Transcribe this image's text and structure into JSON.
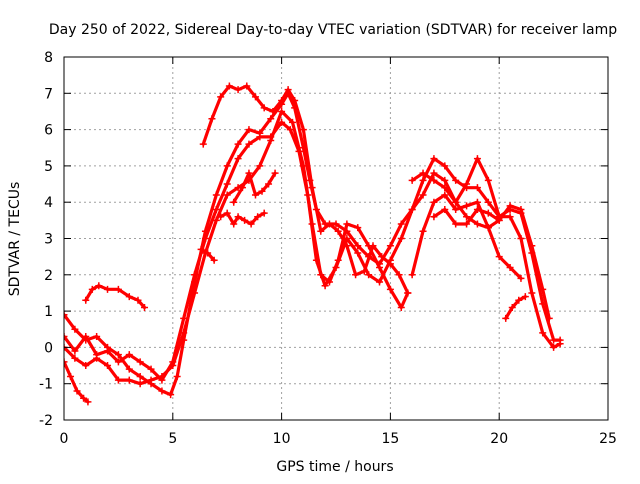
{
  "chart_data": {
    "type": "line",
    "title": "Day 250 of 2022, Sidereal Day-to-day VTEC variation (SDTVAR) for receiver lamp",
    "xlabel": "GPS time / hours",
    "ylabel": "SDTVAR / TECUs",
    "xlim": [
      0,
      25
    ],
    "ylim": [
      -2,
      8
    ],
    "xticks": [
      0,
      5,
      10,
      15,
      20,
      25
    ],
    "yticks": [
      -2,
      -1,
      0,
      1,
      2,
      3,
      4,
      5,
      6,
      7,
      8
    ],
    "grid": true,
    "marker": "+",
    "color": "#ff0000",
    "series": [
      {
        "name": "trace-1",
        "points": [
          [
            0.0,
            0.9
          ],
          [
            0.5,
            0.5
          ],
          [
            1.0,
            0.2
          ],
          [
            1.5,
            0.3
          ],
          [
            2.0,
            0.0
          ],
          [
            2.5,
            -0.2
          ],
          [
            3.0,
            -0.6
          ],
          [
            3.5,
            -0.8
          ],
          [
            4.0,
            -1.0
          ],
          [
            4.5,
            -1.2
          ],
          [
            4.9,
            -1.3
          ],
          [
            5.2,
            -0.8
          ],
          [
            5.5,
            0.2
          ],
          [
            6.0,
            1.8
          ],
          [
            6.5,
            3.2
          ],
          [
            7.0,
            4.2
          ],
          [
            7.5,
            5.0
          ],
          [
            8.0,
            5.6
          ],
          [
            8.5,
            6.0
          ],
          [
            9.0,
            5.9
          ],
          [
            9.5,
            6.3
          ],
          [
            10.0,
            6.7
          ],
          [
            10.3,
            7.0
          ],
          [
            10.6,
            6.6
          ],
          [
            11.0,
            5.5
          ],
          [
            11.3,
            4.6
          ],
          [
            11.6,
            3.8
          ],
          [
            12.0,
            3.4
          ],
          [
            12.5,
            3.4
          ],
          [
            13.0,
            3.2
          ],
          [
            13.5,
            2.8
          ],
          [
            14.0,
            2.5
          ],
          [
            14.5,
            2.3
          ],
          [
            15.0,
            2.8
          ],
          [
            15.5,
            3.4
          ],
          [
            16.0,
            3.8
          ],
          [
            16.5,
            4.6
          ],
          [
            17.0,
            5.2
          ],
          [
            17.5,
            5.0
          ],
          [
            18.0,
            4.6
          ],
          [
            18.5,
            4.4
          ],
          [
            19.0,
            4.4
          ],
          [
            19.5,
            4.0
          ],
          [
            20.0,
            3.6
          ],
          [
            20.5,
            3.8
          ],
          [
            21.0,
            3.7
          ],
          [
            21.5,
            2.6
          ],
          [
            22.0,
            1.2
          ],
          [
            22.5,
            0.2
          ],
          [
            22.8,
            0.2
          ]
        ]
      },
      {
        "name": "trace-2",
        "points": [
          [
            0.0,
            0.3
          ],
          [
            0.5,
            -0.1
          ],
          [
            1.0,
            0.3
          ],
          [
            1.5,
            -0.2
          ],
          [
            2.0,
            -0.1
          ],
          [
            2.5,
            -0.4
          ],
          [
            3.0,
            -0.2
          ],
          [
            3.5,
            -0.4
          ],
          [
            4.0,
            -0.6
          ],
          [
            4.5,
            -0.9
          ],
          [
            5.0,
            -0.4
          ],
          [
            5.5,
            0.8
          ],
          [
            6.0,
            2.0
          ],
          [
            6.5,
            3.0
          ],
          [
            7.0,
            3.8
          ],
          [
            7.5,
            4.5
          ],
          [
            8.0,
            5.2
          ],
          [
            8.5,
            5.6
          ],
          [
            9.0,
            5.8
          ],
          [
            9.5,
            5.8
          ],
          [
            10.0,
            6.2
          ],
          [
            10.4,
            6.0
          ],
          [
            10.8,
            5.4
          ],
          [
            11.2,
            4.2
          ],
          [
            11.6,
            2.4
          ],
          [
            12.0,
            1.7
          ],
          [
            12.5,
            2.2
          ],
          [
            13.0,
            3.0
          ],
          [
            13.5,
            2.6
          ],
          [
            14.0,
            2.0
          ],
          [
            14.5,
            1.8
          ],
          [
            15.0,
            2.4
          ],
          [
            15.5,
            3.0
          ],
          [
            16.0,
            3.8
          ],
          [
            16.5,
            4.2
          ],
          [
            17.0,
            4.8
          ],
          [
            17.5,
            4.6
          ],
          [
            18.0,
            4.0
          ],
          [
            18.5,
            4.5
          ],
          [
            19.0,
            5.2
          ],
          [
            19.5,
            4.6
          ],
          [
            20.0,
            3.6
          ],
          [
            20.5,
            3.6
          ],
          [
            21.0,
            3.0
          ],
          [
            21.5,
            1.5
          ],
          [
            22.0,
            0.4
          ],
          [
            22.5,
            0.0
          ],
          [
            22.8,
            0.1
          ]
        ]
      },
      {
        "name": "trace-3",
        "points": [
          [
            0.0,
            0.0
          ],
          [
            0.5,
            -0.3
          ],
          [
            1.0,
            -0.5
          ],
          [
            1.5,
            -0.3
          ],
          [
            2.0,
            -0.5
          ],
          [
            2.5,
            -0.9
          ],
          [
            3.0,
            -0.9
          ],
          [
            3.5,
            -1.0
          ],
          [
            4.0,
            -0.9
          ],
          [
            4.5,
            -0.8
          ],
          [
            5.0,
            -0.5
          ],
          [
            5.5,
            0.4
          ],
          [
            6.0,
            1.5
          ],
          [
            6.5,
            2.6
          ],
          [
            7.0,
            3.5
          ],
          [
            7.5,
            4.2
          ],
          [
            8.0,
            4.4
          ],
          [
            8.5,
            4.6
          ],
          [
            9.0,
            5.0
          ],
          [
            9.5,
            5.7
          ],
          [
            10.0,
            6.5
          ],
          [
            10.5,
            6.2
          ],
          [
            11.0,
            5.0
          ],
          [
            11.4,
            3.4
          ],
          [
            11.8,
            2.0
          ],
          [
            12.2,
            1.8
          ],
          [
            12.6,
            2.4
          ],
          [
            13.0,
            3.4
          ],
          [
            13.5,
            3.3
          ],
          [
            14.0,
            2.8
          ],
          [
            14.5,
            2.2
          ],
          [
            15.0,
            1.6
          ],
          [
            15.5,
            1.1
          ],
          [
            15.8,
            1.5
          ]
        ]
      },
      {
        "name": "trace-4",
        "points": [
          [
            6.4,
            5.6
          ],
          [
            6.8,
            6.3
          ],
          [
            7.2,
            6.9
          ],
          [
            7.6,
            7.2
          ],
          [
            8.0,
            7.1
          ],
          [
            8.4,
            7.2
          ],
          [
            8.8,
            6.9
          ],
          [
            9.2,
            6.6
          ],
          [
            9.6,
            6.5
          ],
          [
            10.0,
            6.8
          ],
          [
            10.3,
            7.1
          ],
          [
            10.6,
            6.8
          ],
          [
            11.0,
            6.0
          ],
          [
            11.4,
            4.4
          ],
          [
            11.8,
            3.2
          ],
          [
            12.2,
            3.4
          ],
          [
            12.6,
            3.2
          ],
          [
            13.0,
            2.8
          ],
          [
            13.4,
            2.0
          ],
          [
            13.8,
            2.1
          ],
          [
            14.2,
            2.8
          ],
          [
            14.6,
            2.5
          ],
          [
            15.0,
            2.3
          ],
          [
            15.4,
            2.0
          ],
          [
            15.8,
            1.5
          ]
        ]
      },
      {
        "name": "trace-5",
        "points": [
          [
            7.8,
            4.0
          ],
          [
            8.2,
            4.4
          ],
          [
            8.5,
            4.8
          ],
          [
            8.8,
            4.2
          ],
          [
            9.1,
            4.3
          ],
          [
            9.4,
            4.5
          ],
          [
            9.7,
            4.8
          ]
        ]
      },
      {
        "name": "trace-6",
        "points": [
          [
            7.2,
            3.6
          ],
          [
            7.5,
            3.7
          ],
          [
            7.8,
            3.4
          ],
          [
            8.0,
            3.6
          ],
          [
            8.3,
            3.5
          ],
          [
            8.6,
            3.4
          ],
          [
            8.9,
            3.6
          ],
          [
            9.2,
            3.7
          ]
        ]
      },
      {
        "name": "trace-7",
        "points": [
          [
            1.0,
            1.3
          ],
          [
            1.3,
            1.6
          ],
          [
            1.6,
            1.7
          ],
          [
            2.0,
            1.6
          ],
          [
            2.5,
            1.6
          ],
          [
            3.0,
            1.4
          ],
          [
            3.4,
            1.3
          ],
          [
            3.7,
            1.1
          ]
        ]
      },
      {
        "name": "trace-8",
        "points": [
          [
            0.0,
            -0.4
          ],
          [
            0.3,
            -0.8
          ],
          [
            0.6,
            -1.2
          ],
          [
            0.9,
            -1.4
          ],
          [
            1.1,
            -1.5
          ]
        ]
      },
      {
        "name": "trace-9",
        "points": [
          [
            16.0,
            4.6
          ],
          [
            16.5,
            4.8
          ],
          [
            17.0,
            4.6
          ],
          [
            17.5,
            4.4
          ],
          [
            18.0,
            4.0
          ],
          [
            18.5,
            3.6
          ],
          [
            19.0,
            3.4
          ],
          [
            19.5,
            3.3
          ],
          [
            20.0,
            3.5
          ],
          [
            20.5,
            3.9
          ],
          [
            21.0,
            3.8
          ],
          [
            21.5,
            2.8
          ],
          [
            22.0,
            1.6
          ],
          [
            22.3,
            0.8
          ]
        ]
      },
      {
        "name": "trace-10",
        "points": [
          [
            16.0,
            2.0
          ],
          [
            16.5,
            3.2
          ],
          [
            17.0,
            4.0
          ],
          [
            17.5,
            4.2
          ],
          [
            18.0,
            3.8
          ],
          [
            18.5,
            3.9
          ],
          [
            19.0,
            4.0
          ],
          [
            19.5,
            3.3
          ],
          [
            20.0,
            2.5
          ],
          [
            20.5,
            2.2
          ],
          [
            21.0,
            1.9
          ]
        ]
      },
      {
        "name": "trace-11",
        "points": [
          [
            17.0,
            3.6
          ],
          [
            17.5,
            3.8
          ],
          [
            18.0,
            3.4
          ],
          [
            18.5,
            3.4
          ],
          [
            19.0,
            3.8
          ],
          [
            19.5,
            3.7
          ],
          [
            20.0,
            3.5
          ]
        ]
      },
      {
        "name": "trace-12",
        "points": [
          [
            20.3,
            0.8
          ],
          [
            20.6,
            1.1
          ],
          [
            20.9,
            1.3
          ],
          [
            21.2,
            1.4
          ]
        ]
      },
      {
        "name": "trace-13",
        "points": [
          [
            6.3,
            2.7
          ],
          [
            6.6,
            2.6
          ],
          [
            6.9,
            2.4
          ]
        ]
      }
    ]
  }
}
